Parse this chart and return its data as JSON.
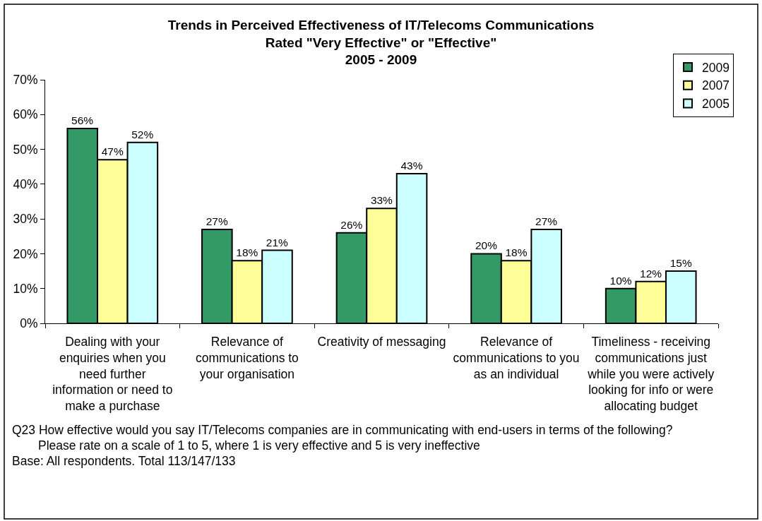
{
  "chart_data": {
    "type": "bar",
    "title": "Trends in Perceived Effectiveness of IT/Telecoms Communications\nRated \"Very Effective\" or \"Effective\"\n2005 - 2009",
    "categories": [
      "Dealing with your enquiries when you need further information or need to make a purchase",
      "Relevance of communications to your organisation",
      "Creativity of messaging",
      "Relevance of communications to you as an individual",
      "Timeliness - receiving communications just while you were actively looking for info or were allocating budget"
    ],
    "series": [
      {
        "name": "2009",
        "color": "#339966",
        "values": [
          56,
          27,
          26,
          20,
          10
        ],
        "value_labels": [
          "56%",
          "27%",
          "26%",
          "20%",
          "10%"
        ]
      },
      {
        "name": "2007",
        "color": "#ffff99",
        "values": [
          47,
          18,
          33,
          18,
          12
        ],
        "value_labels": [
          "47%",
          "18%",
          "33%",
          "18%",
          "12%"
        ]
      },
      {
        "name": "2005",
        "color": "#ccffff",
        "values": [
          52,
          21,
          43,
          27,
          15
        ],
        "value_labels": [
          "52%",
          "21%",
          "43%",
          "27%",
          "15%"
        ]
      }
    ],
    "ylim": [
      0,
      70
    ],
    "yticks": [
      {
        "value": 0,
        "label": "0%"
      },
      {
        "value": 10,
        "label": "10%"
      },
      {
        "value": 20,
        "label": "20%"
      },
      {
        "value": 30,
        "label": "30%"
      },
      {
        "value": 40,
        "label": "40%"
      },
      {
        "value": 50,
        "label": "50%"
      },
      {
        "value": 60,
        "label": "60%"
      },
      {
        "value": 70,
        "label": "70%"
      }
    ],
    "grid": false,
    "legend": "top right",
    "annotations": [
      "Q23 How effective would you say IT/Telecoms companies are in communicating with end-users in terms of the following?",
      "Please rate on a scale of 1 to 5, where 1 is very effective and 5 is very ineffective",
      "Base: All respondents. Total 113/147/133"
    ]
  }
}
